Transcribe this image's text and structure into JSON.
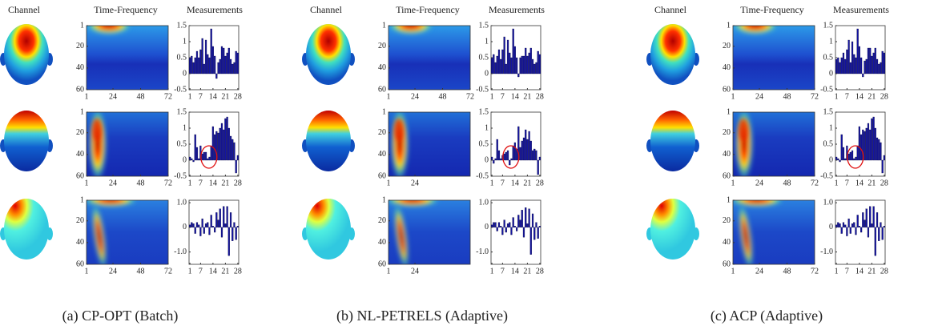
{
  "panels": [
    {
      "caption": "(a) CP-OPT (Batch)",
      "column_titles": [
        "Channel",
        "Time-Frequency",
        "Measurements"
      ]
    },
    {
      "caption": "(b) NL-PETRELS (Adaptive)",
      "column_titles": [
        "Channel",
        "Time-Frequency",
        "Measurements"
      ]
    },
    {
      "caption": "(c) ACP (Adaptive)",
      "column_titles": [
        "Channel",
        "Time-Frequency",
        "Measurements"
      ]
    }
  ],
  "chart_data": [
    {
      "type": "heatmap",
      "xlim": [
        1,
        72
      ],
      "ylim": [
        60,
        1
      ],
      "xticks": [
        1,
        24,
        48,
        72
      ],
      "yticks": [
        1,
        20,
        40,
        60
      ]
    },
    {
      "type": "bar",
      "xlim": [
        0.5,
        28.5
      ],
      "ylim": [
        -0.5,
        1.5
      ],
      "xticks": [
        1,
        7,
        14,
        21,
        28
      ],
      "yticks": [
        -0.5,
        0,
        0.5,
        1,
        1.5
      ],
      "color": "#1414a0",
      "x": [
        1,
        2,
        3,
        4,
        5,
        6,
        7,
        8,
        9,
        10,
        11,
        12,
        13,
        14,
        15,
        16,
        17,
        18,
        19,
        20,
        21,
        22,
        23,
        24,
        25,
        26,
        27,
        28
      ],
      "values": [
        0.5,
        0.55,
        0.35,
        0.5,
        0.7,
        0.5,
        0.75,
        1.1,
        0.3,
        1.05,
        0.6,
        0.5,
        1.4,
        0.85,
        0.55,
        -0.15,
        0.35,
        0.45,
        0.85,
        0.8,
        0.55,
        0.65,
        0.8,
        0.45,
        0.3,
        0.35,
        0.7,
        0.65
      ]
    },
    {
      "type": "heatmap",
      "xlim": [
        1,
        72
      ],
      "ylim": [
        60,
        1
      ],
      "xticks": [
        1,
        24,
        48,
        72
      ],
      "yticks": [
        1,
        20,
        40,
        60
      ]
    },
    {
      "type": "bar",
      "xlim": [
        0.5,
        28.5
      ],
      "ylim": [
        -0.5,
        1.5
      ],
      "xticks": [
        1,
        7,
        14,
        21,
        28
      ],
      "yticks": [
        -0.5,
        0,
        0.5,
        1,
        1.5
      ],
      "color": "#1414a0",
      "x": [
        1,
        2,
        3,
        4,
        5,
        6,
        7,
        8,
        9,
        10,
        11,
        12,
        13,
        14,
        15,
        16,
        17,
        18,
        19,
        20,
        21,
        22,
        23,
        24,
        25,
        26,
        27,
        28
      ],
      "values": [
        0.1,
        0.05,
        -0.05,
        0.8,
        0.4,
        0.05,
        0.45,
        0.2,
        0.25,
        0.25,
        0.05,
        0.1,
        0.45,
        1.05,
        0.8,
        0.9,
        0.85,
        1.0,
        1.15,
        0.95,
        1.3,
        1.35,
        1.0,
        0.75,
        0.65,
        0.55,
        -0.4,
        0.15
      ]
    },
    {
      "type": "heatmap",
      "xlim": [
        1,
        72
      ],
      "ylim": [
        60,
        1
      ],
      "xticks": [
        1,
        24,
        48,
        72
      ],
      "yticks": [
        1,
        20,
        40,
        60
      ]
    },
    {
      "type": "bar",
      "xlim": [
        0.5,
        28.5
      ],
      "ylim": [
        -1.5,
        1.1
      ],
      "xticks": [
        1,
        7,
        14,
        21,
        28
      ],
      "yticks": [
        {
          "value": -1,
          "label": "-1.0"
        },
        0,
        {
          "value": 1,
          "label": "1.0"
        }
      ],
      "color": "#1414a0",
      "x": [
        1,
        2,
        3,
        4,
        5,
        6,
        7,
        8,
        9,
        10,
        11,
        12,
        13,
        14,
        15,
        16,
        17,
        18,
        19,
        20,
        21,
        22,
        23,
        24,
        25,
        26,
        27,
        28
      ],
      "values": [
        0.1,
        0.2,
        0.15,
        -0.25,
        0.2,
        0.1,
        -0.35,
        0.35,
        -0.25,
        0.15,
        0.2,
        -0.3,
        0.5,
        0.05,
        -0.2,
        0.6,
        0.3,
        0.75,
        -0.4,
        0.85,
        0.15,
        0.85,
        -1.15,
        0.6,
        -0.55,
        0.2,
        -0.5,
        0.05
      ]
    },
    {
      "type": "heatmap",
      "xlim": [
        1,
        72
      ],
      "ylim": [
        60,
        1
      ],
      "xticks": [
        1,
        24,
        48,
        72
      ],
      "yticks": [
        1,
        20,
        40,
        60
      ]
    },
    {
      "type": "bar",
      "xlim": [
        0.5,
        28.5
      ],
      "ylim": [
        -0.5,
        1.5
      ],
      "xticks": [
        1,
        7,
        14,
        21,
        28
      ],
      "yticks": [
        -0.5,
        0,
        0.5,
        1,
        1.5
      ],
      "color": "#1414a0",
      "x": [
        1,
        2,
        3,
        4,
        5,
        6,
        7,
        8,
        9,
        10,
        11,
        12,
        13,
        14,
        15,
        16,
        17,
        18,
        19,
        20,
        21,
        22,
        23,
        24,
        25,
        26,
        27,
        28
      ],
      "values": [
        0.5,
        0.6,
        0.35,
        0.55,
        0.75,
        0.45,
        0.75,
        1.15,
        0.3,
        1.05,
        0.65,
        0.5,
        1.4,
        0.85,
        0.5,
        -0.1,
        0.5,
        0.55,
        0.55,
        0.8,
        0.55,
        0.65,
        0.8,
        0.45,
        0.3,
        0.35,
        0.7,
        0.6
      ]
    },
    {
      "type": "heatmap",
      "xlim": [
        1,
        72
      ],
      "ylim": [
        60,
        1
      ],
      "xticks": [
        1,
        24
      ],
      "yticks": [
        1,
        20,
        40,
        60
      ]
    },
    {
      "type": "bar",
      "xlim": [
        0.5,
        28.5
      ],
      "ylim": [
        -0.5,
        1.5
      ],
      "xticks": [
        1,
        7,
        14,
        21,
        28
      ],
      "yticks": [
        -0.5,
        0,
        0.5,
        1,
        1.5
      ],
      "color": "#1414a0",
      "x": [
        1,
        2,
        3,
        4,
        5,
        6,
        7,
        8,
        9,
        10,
        11,
        12,
        13,
        14,
        15,
        16,
        17,
        18,
        19,
        20,
        21,
        22,
        23,
        24,
        25,
        26,
        27,
        28
      ],
      "values": [
        0.1,
        -0.1,
        0.05,
        0.65,
        0.3,
        0.05,
        0.15,
        0.2,
        0.25,
        0.3,
        -0.15,
        0.05,
        0.45,
        0.55,
        0.35,
        1.05,
        0.4,
        0.6,
        0.7,
        0.95,
        0.65,
        0.9,
        0.6,
        0.3,
        0.35,
        0.3,
        -0.45,
        0.1
      ]
    },
    {
      "type": "heatmap",
      "xlim": [
        1,
        72
      ],
      "ylim": [
        60,
        1
      ],
      "xticks": [
        1,
        24
      ],
      "yticks": [
        1,
        20,
        40,
        60
      ]
    },
    {
      "type": "bar",
      "xlim": [
        0.5,
        28.5
      ],
      "ylim": [
        -1.5,
        1.1
      ],
      "xticks": [
        1,
        7,
        14,
        21,
        28
      ],
      "yticks": [
        {
          "value": -1,
          "label": "-1.0"
        },
        0,
        {
          "value": 1,
          "label": "1.0"
        }
      ],
      "color": "#1414a0",
      "x": [
        1,
        2,
        3,
        4,
        5,
        6,
        7,
        8,
        9,
        10,
        11,
        12,
        13,
        14,
        15,
        16,
        17,
        18,
        19,
        20,
        21,
        22,
        23,
        24,
        25,
        26,
        27,
        28
      ],
      "values": [
        0.1,
        0.2,
        0.2,
        -0.15,
        0.2,
        0.05,
        -0.3,
        0.3,
        -0.2,
        0.15,
        0.2,
        -0.3,
        0.4,
        0.05,
        -0.15,
        0.5,
        0.3,
        0.7,
        -0.4,
        0.8,
        0.15,
        0.75,
        -1.1,
        0.55,
        -0.5,
        0.2,
        -0.45,
        0.05
      ]
    },
    {
      "type": "heatmap",
      "xlim": [
        1,
        72
      ],
      "ylim": [
        60,
        1
      ],
      "xticks": [
        1,
        24,
        48,
        72
      ],
      "yticks": [
        1,
        20,
        40,
        60
      ]
    },
    {
      "type": "bar",
      "xlim": [
        0.5,
        28.5
      ],
      "ylim": [
        -0.5,
        1.5
      ],
      "xticks": [
        1,
        7,
        14,
        21,
        28
      ],
      "yticks": [
        -0.5,
        0,
        0.5,
        1,
        1.5
      ],
      "color": "#1414a0",
      "x": [
        1,
        2,
        3,
        4,
        5,
        6,
        7,
        8,
        9,
        10,
        11,
        12,
        13,
        14,
        15,
        16,
        17,
        18,
        19,
        20,
        21,
        22,
        23,
        24,
        25,
        26,
        27,
        28
      ],
      "values": [
        0.45,
        0.5,
        0.35,
        0.5,
        0.65,
        0.45,
        0.75,
        1.05,
        0.35,
        1.0,
        0.6,
        0.5,
        1.4,
        0.85,
        0.5,
        -0.1,
        0.4,
        0.45,
        0.8,
        0.8,
        0.55,
        0.65,
        0.8,
        0.45,
        0.3,
        0.35,
        0.7,
        0.65
      ]
    },
    {
      "type": "heatmap",
      "xlim": [
        1,
        72
      ],
      "ylim": [
        60,
        1
      ],
      "xticks": [
        1,
        24,
        48,
        72
      ],
      "yticks": [
        1,
        20,
        40,
        60
      ]
    },
    {
      "type": "bar",
      "xlim": [
        0.5,
        28.5
      ],
      "ylim": [
        -0.5,
        1.5
      ],
      "xticks": [
        1,
        7,
        14,
        21,
        28
      ],
      "yticks": [
        -0.5,
        0,
        0.5,
        1,
        1.5
      ],
      "color": "#1414a0",
      "x": [
        1,
        2,
        3,
        4,
        5,
        6,
        7,
        8,
        9,
        10,
        11,
        12,
        13,
        14,
        15,
        16,
        17,
        18,
        19,
        20,
        21,
        22,
        23,
        24,
        25,
        26,
        27,
        28
      ],
      "values": [
        0.1,
        0.05,
        -0.05,
        0.8,
        0.4,
        0.05,
        0.45,
        0.2,
        0.25,
        0.3,
        0.05,
        0.1,
        0.45,
        1.05,
        0.8,
        0.95,
        0.9,
        1.0,
        1.15,
        0.95,
        1.3,
        1.35,
        1.0,
        0.7,
        0.65,
        0.55,
        -0.4,
        0.15
      ]
    },
    {
      "type": "heatmap",
      "xlim": [
        1,
        72
      ],
      "ylim": [
        60,
        1
      ],
      "xticks": [
        1,
        24,
        48,
        72
      ],
      "yticks": [
        1,
        20,
        40,
        60
      ]
    },
    {
      "type": "bar",
      "xlim": [
        0.5,
        28.5
      ],
      "ylim": [
        -1.5,
        1.1
      ],
      "xticks": [
        1,
        7,
        14,
        21,
        28
      ],
      "yticks": [
        {
          "value": -1,
          "label": "-1.0"
        },
        0,
        {
          "value": 1,
          "label": "1.0"
        }
      ],
      "color": "#1414a0",
      "x": [
        1,
        2,
        3,
        4,
        5,
        6,
        7,
        8,
        9,
        10,
        11,
        12,
        13,
        14,
        15,
        16,
        17,
        18,
        19,
        20,
        21,
        22,
        23,
        24,
        25,
        26,
        27,
        28
      ],
      "values": [
        0.1,
        0.2,
        0.15,
        -0.25,
        0.2,
        0.1,
        -0.35,
        0.35,
        -0.25,
        0.15,
        0.2,
        -0.3,
        0.5,
        0.05,
        -0.2,
        0.6,
        0.3,
        0.75,
        -0.4,
        0.85,
        0.15,
        0.85,
        -1.15,
        0.6,
        -0.55,
        0.2,
        -0.5,
        0.05
      ]
    }
  ]
}
